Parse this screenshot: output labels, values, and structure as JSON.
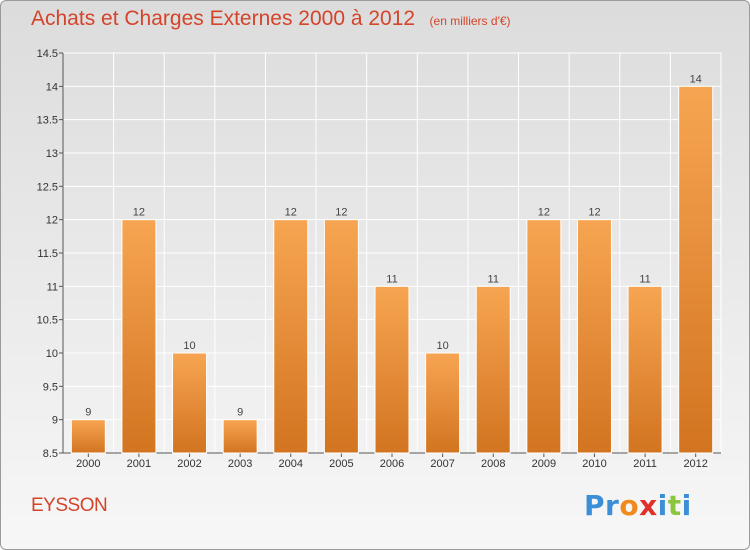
{
  "header": {
    "title": "Achats et Charges Externes 2000 à 2012",
    "unit": "(en milliers d'€)"
  },
  "footer": {
    "commune": "EYSSON",
    "brand": "Proxiti",
    "brand_colors": [
      "#3b8fd6",
      "#3b8fd6",
      "#f08a1c",
      "#e0302a",
      "#3b8fd6",
      "#8cc63e",
      "#3b8fd6"
    ]
  },
  "colors": {
    "bar_light": "#f7a552",
    "bar_dark": "#d27420",
    "text_accent": "#d4442a"
  },
  "chart_data": {
    "type": "bar",
    "title": "Achats et Charges Externes 2000 à 2012",
    "unit": "(en milliers d'€)",
    "categories": [
      "2000",
      "2001",
      "2002",
      "2003",
      "2004",
      "2005",
      "2006",
      "2007",
      "2008",
      "2009",
      "2010",
      "2011",
      "2012"
    ],
    "values": [
      9,
      12,
      10,
      9,
      12,
      12,
      11,
      10,
      11,
      12,
      12,
      11,
      14
    ],
    "ylim": [
      8.5,
      14.5
    ],
    "yticks": [
      8.5,
      9,
      9.5,
      10,
      10.5,
      11,
      11.5,
      12,
      12.5,
      13,
      13.5,
      14,
      14.5
    ],
    "grid": true,
    "legend": "none"
  }
}
